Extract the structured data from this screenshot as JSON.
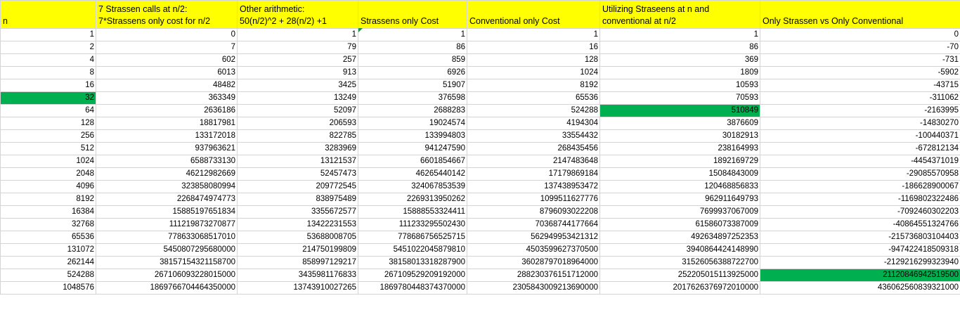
{
  "sheet": {
    "accent_color": "#00b050",
    "header_color": "#ffff00",
    "columns": [
      {
        "line1": "",
        "line2": "n"
      },
      {
        "line1": "7 Strassen calls at n/2:",
        "line2": "7*Strassens only cost for n/2"
      },
      {
        "line1": "Other arithmetic:",
        "line2": "50(n/2)^2 + 28(n/2) +1"
      },
      {
        "line1": "",
        "line2": "Strassens only Cost"
      },
      {
        "line1": "",
        "line2": "Conventional only Cost"
      },
      {
        "line1": "Utilizing Straseens at n and",
        "line2": "conventional at n/2"
      },
      {
        "line1": "",
        "line2": "Only Strassen vs Only Conventional"
      }
    ],
    "rows": [
      [
        "1",
        "0",
        "1",
        "1",
        "1",
        "1",
        "0"
      ],
      [
        "2",
        "7",
        "79",
        "86",
        "16",
        "86",
        "-70"
      ],
      [
        "4",
        "602",
        "257",
        "859",
        "128",
        "369",
        "-731"
      ],
      [
        "8",
        "6013",
        "913",
        "6926",
        "1024",
        "1809",
        "-5902"
      ],
      [
        "16",
        "48482",
        "3425",
        "51907",
        "8192",
        "10593",
        "-43715"
      ],
      [
        "32",
        "363349",
        "13249",
        "376598",
        "65536",
        "70593",
        "-311062"
      ],
      [
        "64",
        "2636186",
        "52097",
        "2688283",
        "524288",
        "510849",
        "-2163995"
      ],
      [
        "128",
        "18817981",
        "206593",
        "19024574",
        "4194304",
        "3876609",
        "-14830270"
      ],
      [
        "256",
        "133172018",
        "822785",
        "133994803",
        "33554432",
        "30182913",
        "-100440371"
      ],
      [
        "512",
        "937963621",
        "3283969",
        "941247590",
        "268435456",
        "238164993",
        "-672812134"
      ],
      [
        "1024",
        "6588733130",
        "13121537",
        "6601854667",
        "2147483648",
        "1892169729",
        "-4454371019"
      ],
      [
        "2048",
        "46212982669",
        "52457473",
        "46265440142",
        "17179869184",
        "15084843009",
        "-29085570958"
      ],
      [
        "4096",
        "323858080994",
        "209772545",
        "324067853539",
        "137438953472",
        "120468856833",
        "-186628900067"
      ],
      [
        "8192",
        "2268474974773",
        "838975489",
        "2269313950262",
        "1099511627776",
        "962911649793",
        "-1169802322486"
      ],
      [
        "16384",
        "15885197651834",
        "3355672577",
        "15888553324411",
        "8796093022208",
        "7699937067009",
        "-7092460302203"
      ],
      [
        "32768",
        "111219873270877",
        "13422231553",
        "111233295502430",
        "70368744177664",
        "61586073387009",
        "-40864551324766"
      ],
      [
        "65536",
        "778633068517010",
        "53688008705",
        "778686756525715",
        "562949953421312",
        "492634897252353",
        "-215736803104403"
      ],
      [
        "131072",
        "5450807295680000",
        "214750199809",
        "5451022045879810",
        "4503599627370500",
        "3940864424148990",
        "-947422418509318"
      ],
      [
        "262144",
        "38157154321158700",
        "858997129217",
        "38158013318287900",
        "36028797018964000",
        "31526056388722700",
        "-2129216299323940"
      ],
      [
        "524288",
        "267106093228015000",
        "3435981176833",
        "267109529209192000",
        "288230376151712000",
        "252205015113925000",
        "21120846942519500"
      ],
      [
        "1048576",
        "1869766704464350000",
        "13743910027265",
        "1869780448374370000",
        "2305843009213690000",
        "2017626376972010000",
        "436062560839321000"
      ]
    ],
    "highlighted_cells": [
      {
        "row": 5,
        "col": 0
      },
      {
        "row": 6,
        "col": 5
      },
      {
        "row": 19,
        "col": 6
      }
    ]
  }
}
